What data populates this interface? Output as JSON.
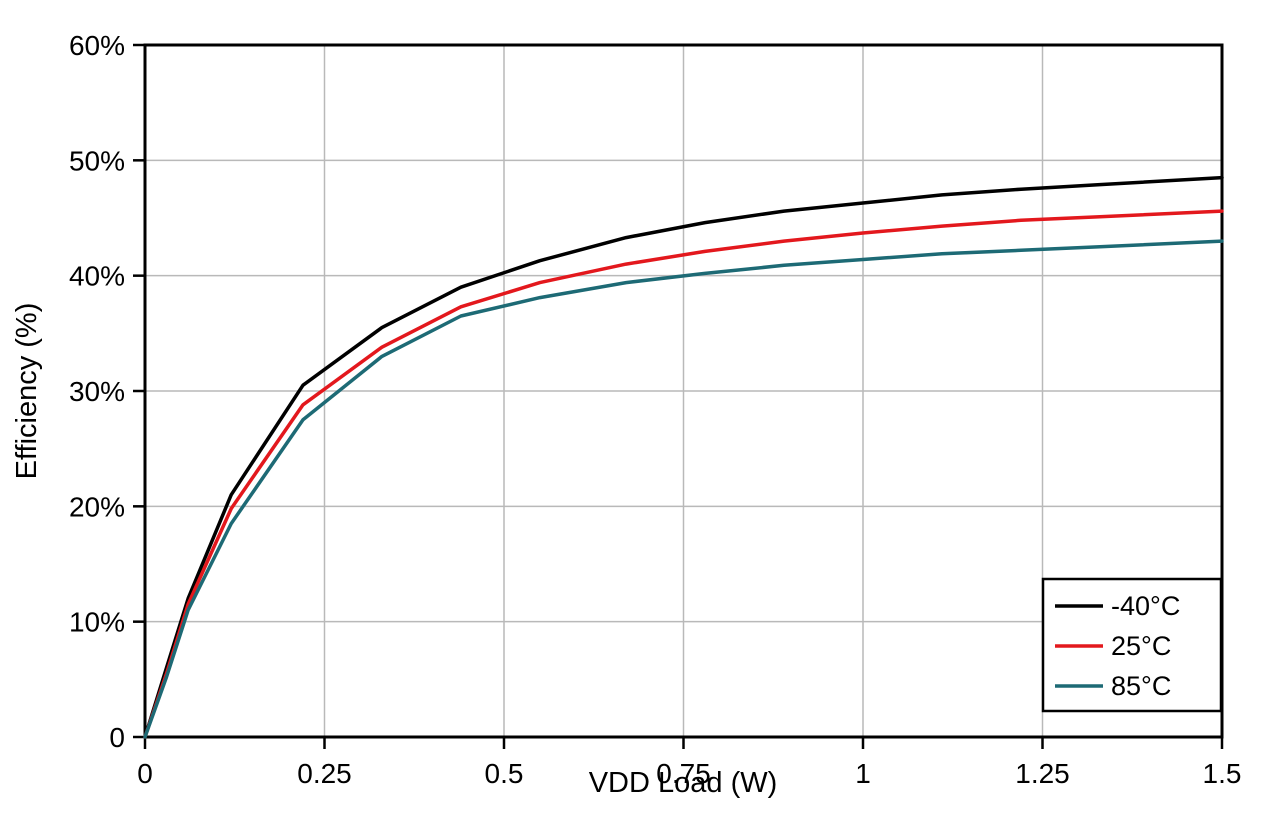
{
  "chart_data": {
    "type": "line",
    "title": "",
    "xlabel": "VDD Load (W)",
    "ylabel": "Efficiency (%)",
    "xlim": [
      0,
      1.5
    ],
    "ylim": [
      0,
      60
    ],
    "x_ticks": [
      0,
      0.25,
      0.5,
      0.75,
      1,
      1.25,
      1.5
    ],
    "x_tick_labels": [
      "0",
      "0.25",
      "0.5",
      "0.75",
      "1",
      "1.25",
      "1.5"
    ],
    "y_ticks": [
      0,
      10,
      20,
      30,
      40,
      50,
      60
    ],
    "y_tick_labels": [
      "0",
      "10%",
      "20%",
      "30%",
      "40%",
      "50%",
      "60%"
    ],
    "grid": true,
    "legend_position": "bottom-right",
    "colors": {
      "grid": "#b9b9b9",
      "frame": "#000000",
      "background": "#ffffff"
    },
    "x": [
      0,
      0.03,
      0.06,
      0.12,
      0.22,
      0.33,
      0.44,
      0.55,
      0.67,
      0.78,
      0.89,
      1.0,
      1.11,
      1.22,
      1.33,
      1.5
    ],
    "series": [
      {
        "name": "-40°C",
        "color": "#000000",
        "values": [
          0,
          6.0,
          12.0,
          21.0,
          30.5,
          35.5,
          39.0,
          41.3,
          43.3,
          44.6,
          45.6,
          46.3,
          47.0,
          47.5,
          47.9,
          48.5
        ]
      },
      {
        "name": "25°C",
        "color": "#e3181d",
        "values": [
          0,
          5.5,
          11.5,
          19.8,
          28.8,
          33.8,
          37.3,
          39.4,
          41.0,
          42.1,
          43.0,
          43.7,
          44.3,
          44.8,
          45.1,
          45.6
        ]
      },
      {
        "name": "85°C",
        "color": "#1d6a75",
        "values": [
          0,
          5.2,
          11.0,
          18.5,
          27.5,
          33.0,
          36.5,
          38.1,
          39.4,
          40.2,
          40.9,
          41.4,
          41.9,
          42.2,
          42.5,
          43.0
        ]
      }
    ]
  }
}
